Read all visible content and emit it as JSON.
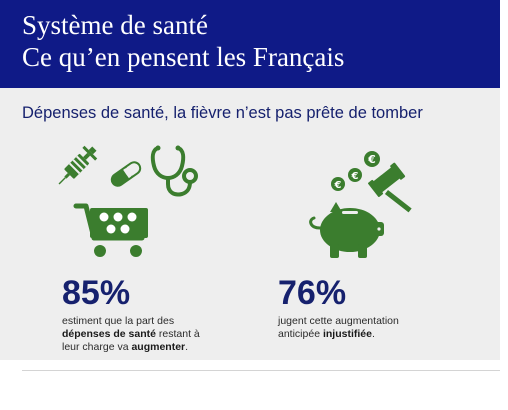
{
  "header": {
    "title_line1": "Système de santé",
    "title_line2": "Ce qu’en pensent les Français"
  },
  "subtitle": "Dépenses de santé, la fièvre n’est pas prête de tomber",
  "stats": [
    {
      "value": "85%",
      "desc_line1": "estiment que la part des",
      "desc_bold1": "dépenses de santé",
      "desc_after_bold1": " restant à",
      "desc_line3_prefix": "leur charge va ",
      "desc_bold2": "augmenter",
      "desc_line3_suffix": "."
    },
    {
      "value": "76%",
      "desc_line1": "jugent cette augmentation",
      "desc_line2_prefix": "anticipée ",
      "desc_bold": "injustifiée",
      "desc_line2_suffix": "."
    }
  ],
  "icons": {
    "left": [
      "syringe-icon",
      "pill-icon",
      "stethoscope-icon",
      "shopping-cart-icon"
    ],
    "right": [
      "euro-coins-icon",
      "gavel-icon",
      "piggy-bank-icon"
    ]
  },
  "colors": {
    "header": "#0f1a87",
    "accent_green": "#3b7d2e",
    "text_blue": "#16216e",
    "panel": "#eeeeee"
  }
}
